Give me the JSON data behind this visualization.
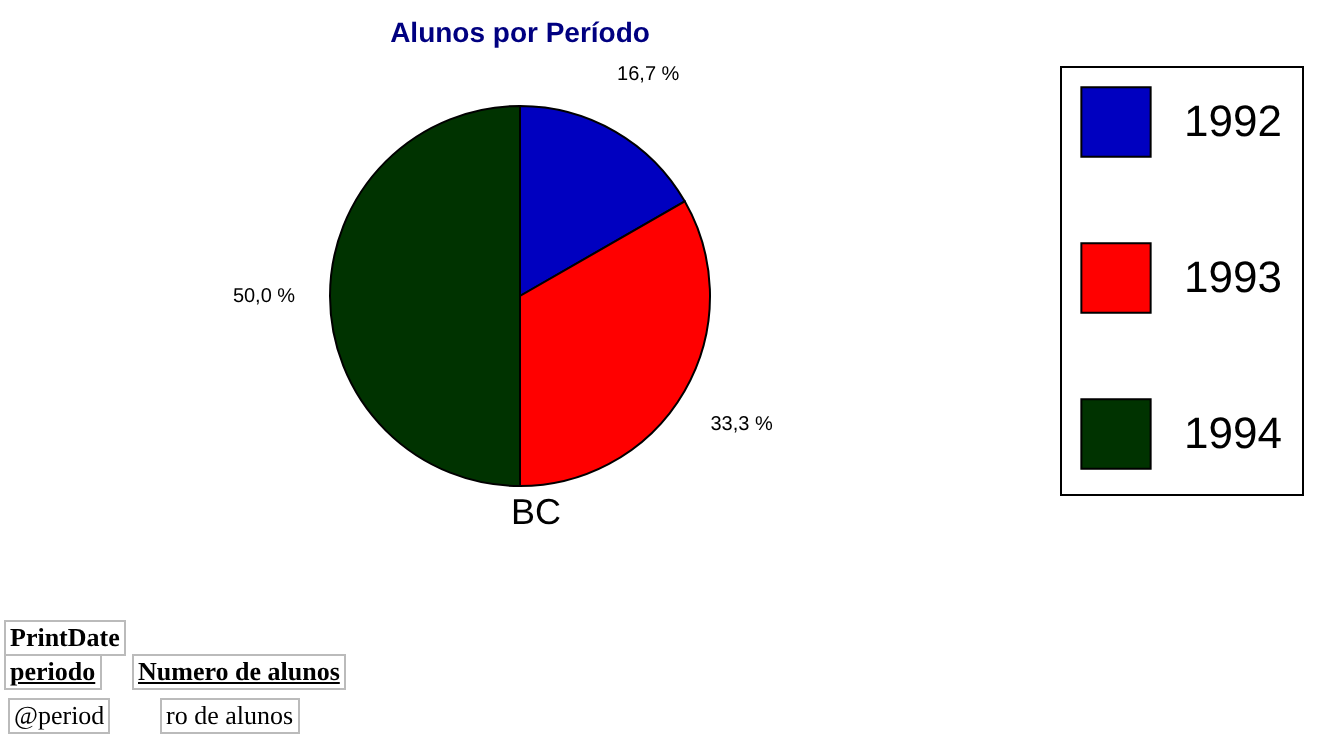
{
  "chart_data": {
    "type": "pie",
    "title": "Alunos por Período",
    "xlabel": "BC",
    "categories": [
      "1992",
      "1993",
      "1994"
    ],
    "values": [
      16.7,
      33.3,
      50.0
    ],
    "value_labels": [
      "16,7 %",
      "33,3 %",
      "50,0 %"
    ],
    "colors": [
      "#0000c0",
      "#ff0000",
      "#003300"
    ],
    "legend": "right",
    "annotations": [
      "PrintDate",
      "periodo",
      "Numero de alunos",
      "@period",
      "ro de alunos"
    ]
  }
}
